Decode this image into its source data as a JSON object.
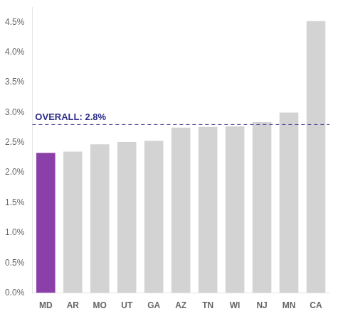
{
  "chart_data": {
    "type": "bar",
    "categories": [
      "MD",
      "AR",
      "MO",
      "UT",
      "GA",
      "AZ",
      "TN",
      "WI",
      "NJ",
      "MN",
      "CA"
    ],
    "values": [
      2.33,
      2.35,
      2.47,
      2.51,
      2.53,
      2.75,
      2.76,
      2.77,
      2.84,
      3.0,
      4.52
    ],
    "colors": [
      "#8b3fa8",
      "#d3d3d3",
      "#d3d3d3",
      "#d3d3d3",
      "#d3d3d3",
      "#d3d3d3",
      "#d3d3d3",
      "#d3d3d3",
      "#d3d3d3",
      "#d3d3d3",
      "#d3d3d3"
    ],
    "annotations": [
      {
        "text": "OVERALL: 2.8%",
        "y": 2.8,
        "color": "#2e2e8a",
        "line_style": "dashed"
      }
    ],
    "ylim": [
      0,
      4.75
    ],
    "yticks": [
      {
        "value": 0.0,
        "label": "0.0%"
      },
      {
        "value": 0.5,
        "label": "0.5%"
      },
      {
        "value": 1.0,
        "label": "1.0%"
      },
      {
        "value": 1.5,
        "label": "1.5%"
      },
      {
        "value": 2.0,
        "label": "2.0%"
      },
      {
        "value": 2.5,
        "label": "2.5%"
      },
      {
        "value": 3.0,
        "label": "3.0%"
      },
      {
        "value": 3.5,
        "label": "3.5%"
      },
      {
        "value": 4.0,
        "label": "4.0%"
      },
      {
        "value": 4.5,
        "label": "4.5%"
      }
    ],
    "grid": false
  }
}
